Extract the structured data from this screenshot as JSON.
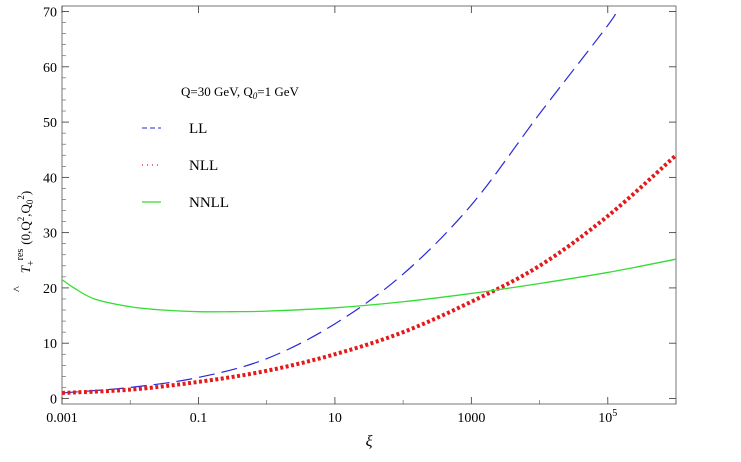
{
  "chart_data": {
    "type": "line",
    "xlabel": "ξ",
    "ylabel": "T̂₊ʳᵉˢ (0,Q²,Q₀²)",
    "ylabel_parts": {
      "base": "T",
      "accent": "^",
      "sub": "+",
      "sup": "res",
      "args": "(0,Q",
      "q2": "2",
      "sep": ",Q",
      "q0sub": "0",
      "q0sup": "2",
      "close": ")"
    },
    "annotation": "Q=30 GeV, Q",
    "annotation_sub": "0",
    "annotation_tail": "=1 GeV",
    "x_scale": "log",
    "xlim": [
      0.001,
      1000000
    ],
    "ylim": [
      -1,
      71
    ],
    "x_ticks": [
      {
        "value": 0.001,
        "label": "0.001"
      },
      {
        "value": 0.1,
        "label": "0.1"
      },
      {
        "value": 10,
        "label": "10"
      },
      {
        "value": 1000,
        "label": "1000"
      },
      {
        "value": 100000,
        "label": "10",
        "sup": "5"
      }
    ],
    "y_ticks": [
      0,
      10,
      20,
      30,
      40,
      50,
      60,
      70
    ],
    "legend": "left, upper area",
    "grid": false,
    "series": [
      {
        "name": "LL",
        "color": "#2a2ad8",
        "style": "dashed",
        "x": [
          0.001,
          0.01,
          0.1,
          1,
          10,
          100,
          1000,
          10000,
          100000,
          130000
        ],
        "y": [
          1.0,
          2.0,
          3.8,
          7.2,
          13.5,
          22.5,
          35.0,
          51.5,
          67.5,
          70.0
        ]
      },
      {
        "name": "NLL",
        "color": "#e41a1a",
        "style": "dotted",
        "x": [
          0.001,
          0.01,
          0.1,
          1,
          10,
          100,
          1000,
          10000,
          100000,
          1000000
        ],
        "y": [
          1.0,
          1.6,
          3.0,
          5.0,
          8.0,
          12.0,
          17.5,
          24.0,
          33.0,
          44.0
        ]
      },
      {
        "name": "NNLL",
        "color": "#33dd33",
        "style": "solid",
        "x": [
          0.001,
          0.0015,
          0.003,
          0.01,
          0.03,
          0.1,
          0.3,
          1,
          10,
          100,
          1000,
          10000,
          100000,
          1000000
        ],
        "y": [
          21.5,
          20.0,
          18.0,
          16.6,
          16.0,
          15.7,
          15.7,
          15.8,
          16.4,
          17.5,
          19.0,
          20.8,
          22.8,
          25.2
        ]
      }
    ]
  }
}
